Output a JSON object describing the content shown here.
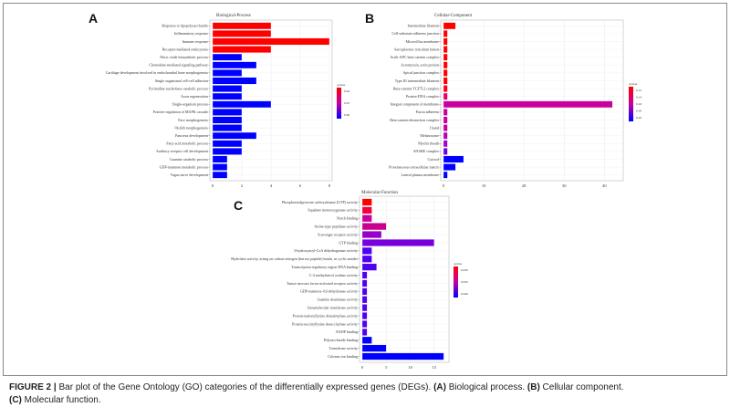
{
  "caption": {
    "figure_label": "FIGURE 2 |",
    "text1": " Bar plot of the Gene Ontology (GO) categories of the differentially expressed genes (DEGs). ",
    "a_label": "(A)",
    "a_text": " Biological process. ",
    "b_label": "(B)",
    "b_text": " Cellular component.",
    "c_label": "(C)",
    "c_text": " Molecular function."
  },
  "chart_data": [
    {
      "panel": "A",
      "type": "bar",
      "orientation": "horizontal",
      "title": "Biological-Process",
      "xlim": [
        0,
        8
      ],
      "xticks": [
        "0",
        "2",
        "4",
        "6",
        "8"
      ],
      "legend": {
        "title": "qvalue",
        "ticks": [
          "0.04",
          "0.05",
          "0.06"
        ],
        "position": "right"
      },
      "categories": [
        "Response to lipopolysaccharide",
        "Inflammatory response",
        "Immune response",
        "Receptor-mediated endocytosis",
        "Nitric oxide biosynthetic process",
        "Chemokine-mediated signaling pathway",
        "Cartilage development involved in endochondral bone morphogenesis",
        "Single organismal cell-cell adhesion",
        "Pyrimidine nucleobase catabolic process",
        "Axon regeneration",
        "Single-organism process",
        "Positive regulation of MAPK cascade",
        "Face morphogenesis",
        "Otolith morphogenesis",
        "Pancreas development",
        "Fatty acid metabolic process",
        "Auditory receptor cell development",
        "Guanine catabolic process",
        "GDP-mannose metabolic process",
        "Vagus nerve development"
      ],
      "values": [
        4,
        4,
        8,
        4,
        2,
        3,
        2,
        3,
        2,
        2,
        4,
        2,
        2,
        2,
        3,
        2,
        2,
        1,
        1,
        1
      ],
      "colors": [
        "#ff0000",
        "#ff0000",
        "#ff0000",
        "#ff0000",
        "#0000ff",
        "#0000ff",
        "#0000ff",
        "#0000ff",
        "#0000ff",
        "#0000ff",
        "#0000ff",
        "#0000ff",
        "#0000ff",
        "#0000ff",
        "#0000ff",
        "#0000ff",
        "#0000ff",
        "#0000ff",
        "#0000ff",
        "#0000ff"
      ]
    },
    {
      "panel": "B",
      "type": "bar",
      "orientation": "horizontal",
      "title": "Cellular-Component",
      "xlim": [
        0,
        44
      ],
      "xticks": [
        "0",
        "10",
        "20",
        "30",
        "40"
      ],
      "legend": {
        "title": "qvalue",
        "ticks": [
          "0.12",
          "0.14",
          "0.16",
          "0.18",
          "0.20"
        ],
        "position": "right"
      },
      "categories": [
        "Intermediate filament",
        "Cell-substrate adherens junction",
        "Microvillus membrane",
        "Sarcoplasmic reticulum lumen",
        "Scrib-APC-beta-catenin complex",
        "Actomyosin, actin portion",
        "Apical junction complex",
        "Type III intermediate filament",
        "Beta-catenin-TCF7L2 complex",
        "Protein-DNA complex",
        "Integral component of membrane",
        "Fascia adherens",
        "Beta-catenin destruction complex",
        "I band",
        "Melanosome",
        "Myelin sheath",
        "SNARE complex",
        "Cytosol",
        "Proteinaceous extracellular matrix",
        "Lateral plasma membrane"
      ],
      "values": [
        3,
        1,
        1,
        1,
        1,
        1,
        1,
        1,
        1,
        1,
        42,
        1,
        1,
        1,
        1,
        1,
        1,
        5,
        3,
        1
      ],
      "colors": [
        "#ff0000",
        "#ff0000",
        "#ff0000",
        "#ff0000",
        "#ff0000",
        "#ff0000",
        "#ff0000",
        "#ff0000",
        "#ff0014",
        "#e6006e",
        "#c800a0",
        "#c800a0",
        "#c800a0",
        "#c800a0",
        "#b400b4",
        "#a000c8",
        "#6e00e6",
        "#0000ff",
        "#0000ff",
        "#0000ff"
      ]
    },
    {
      "panel": "C",
      "type": "bar",
      "orientation": "horizontal",
      "title": "Molecular-Function",
      "xlim": [
        0,
        17.5
      ],
      "xticks": [
        "0",
        "5",
        "10",
        "15"
      ],
      "legend": {
        "title": "qvalue",
        "ticks": [
          "0.030",
          "0.035",
          "0.040"
        ],
        "position": "right"
      },
      "categories": [
        "Phosphoenolpyruvate carboxykinase (GTP) activity",
        "Squalene monooxygenase activity",
        "Notch binding",
        "Serine-type peptidase activity",
        "Scavenger receptor activity",
        "GTP binding",
        "3-hydroxyacyl-CoA dehydrogenase activity",
        "Hydrolase activity, acting on carbon-nitrogen (but not peptide) bonds, in cyclic amides",
        "Transcription regulatory region DNA binding",
        "C-4 methylsterol oxidase activity",
        "Tumor necrosis factor-activated receptor activity",
        "GDP-mannose 4,6-dehydratase activity",
        "Guanine deaminase activity",
        "Intramolecular transferase activity",
        "Protein-malonyllysine demalonylase activity",
        "Protein-succinyllysine desuccinylase activity",
        "NADP binding",
        "Polysaccharide binding",
        "Transferase activity",
        "Calcium ion binding"
      ],
      "values": [
        2,
        2,
        2,
        5,
        4,
        15,
        2,
        2,
        3,
        1,
        1,
        1,
        1,
        1,
        1,
        1,
        1,
        2,
        5,
        17
      ],
      "colors": [
        "#ff0000",
        "#f5003c",
        "#c8009b",
        "#c8008c",
        "#9600c8",
        "#7800dc",
        "#5000f0",
        "#5000f0",
        "#5000f0",
        "#5000f0",
        "#5000f0",
        "#5000f0",
        "#5000f0",
        "#5000f0",
        "#5000f0",
        "#5000f0",
        "#5000f0",
        "#0000ff",
        "#0000ff",
        "#0000ff"
      ]
    }
  ]
}
